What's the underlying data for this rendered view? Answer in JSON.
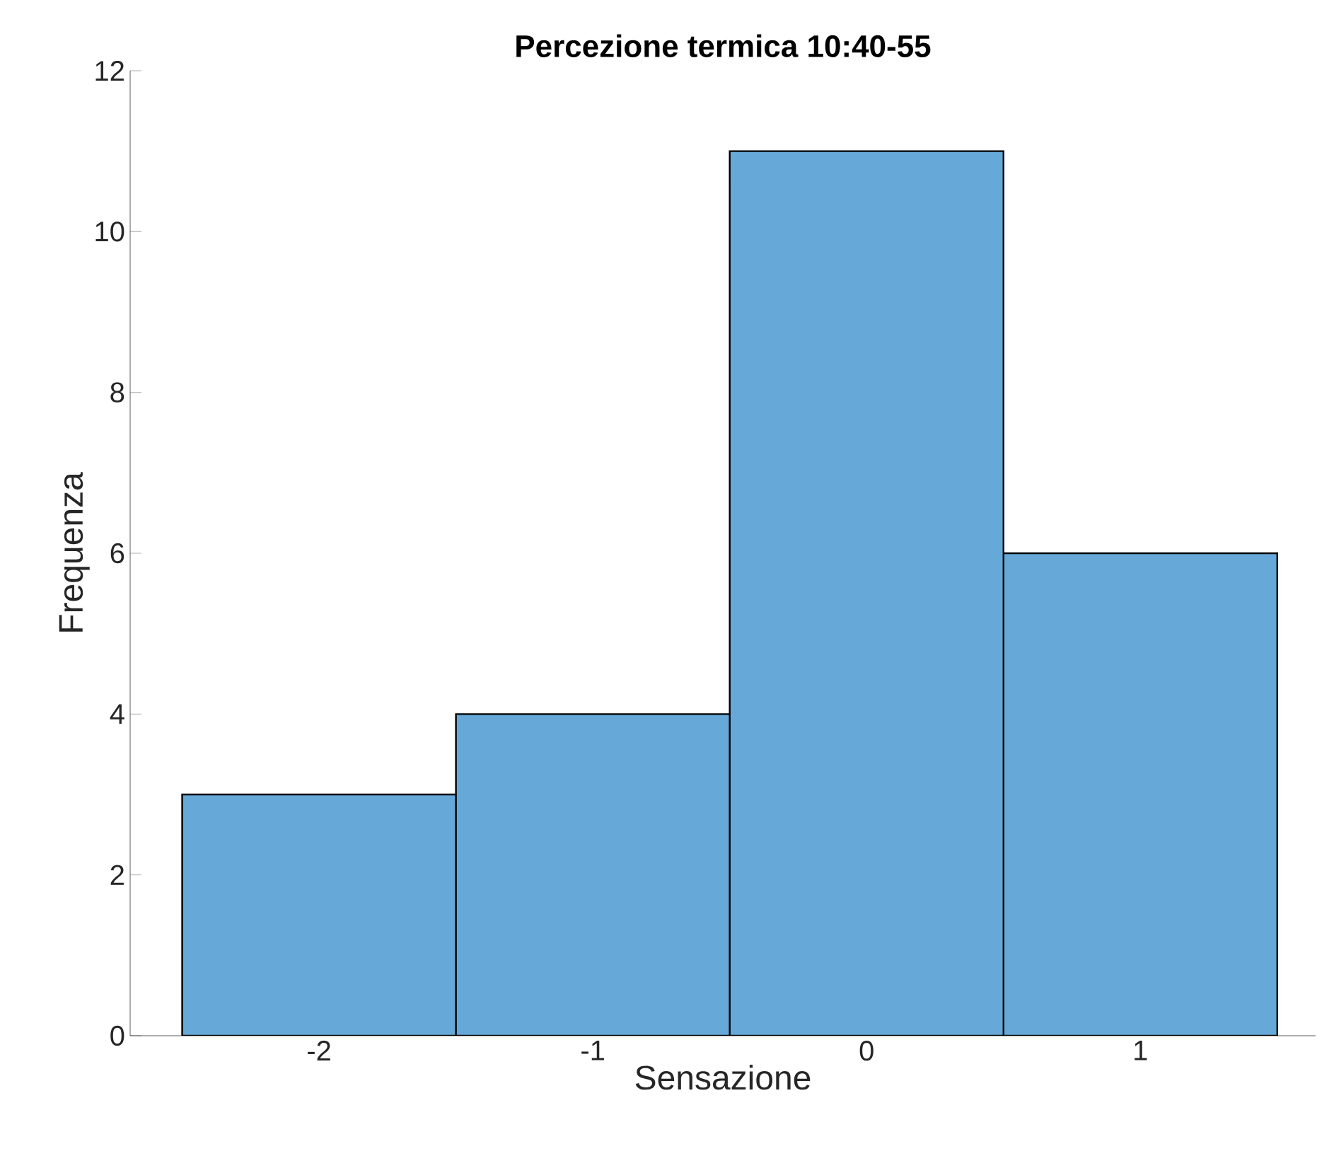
{
  "chart_data": {
    "type": "histogram",
    "title": "Percezione termica 10:40-55",
    "xlabel": "Sensazione",
    "ylabel": "Frequenza",
    "bins": [
      -2.5,
      -1.5,
      -0.5,
      0.5,
      1.5
    ],
    "values": [
      3,
      4,
      11,
      6
    ],
    "color": "#66a8d7",
    "xlim": [
      -2.69,
      1.64
    ],
    "ylim": [
      0,
      12
    ],
    "xticks": [
      -2,
      -1,
      0,
      1
    ],
    "yticks": [
      0,
      2,
      4,
      6,
      8,
      10,
      12
    ],
    "grid": false
  }
}
